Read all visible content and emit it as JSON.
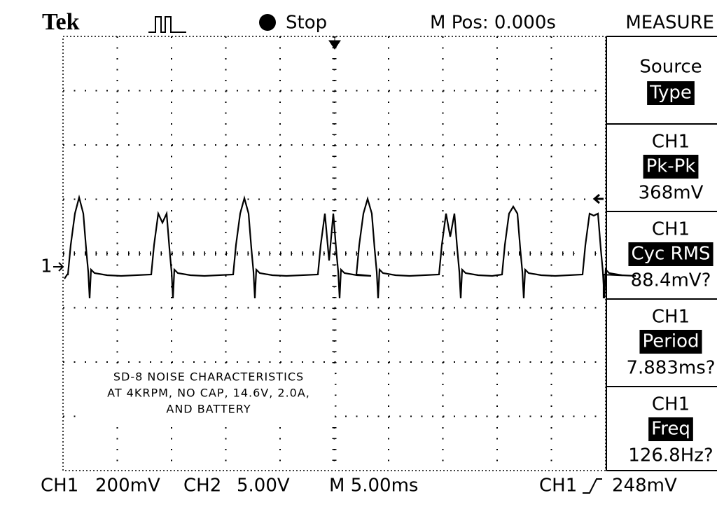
{
  "header": {
    "brand": "Tek",
    "state": "Stop",
    "position": "M Pos: 0.000s",
    "menu": "MEASURE"
  },
  "measure": [
    {
      "label": "Source",
      "selected": "Type"
    },
    {
      "label": "CH1",
      "selected": "Pk-Pk",
      "reading": "368mV"
    },
    {
      "label": "CH1",
      "selected": "Cyc RMS",
      "reading": "88.4mV?"
    },
    {
      "label": "CH1",
      "selected": "Period",
      "reading": "7.883ms?"
    },
    {
      "label": "CH1",
      "selected": "Freq",
      "reading": "126.8Hz?"
    }
  ],
  "marker": "1",
  "annotation": [
    "SD-8 NOISE CHARACTERISTICS",
    "AT 4KRPM, NO CAP, 14.6V, 2.0A,",
    "AND BATTERY"
  ],
  "footer": {
    "ch1": "CH1",
    "ch1_scale": "200mV",
    "ch2": "CH2",
    "ch2_scale": "5.00V",
    "timebase": "M 5.00ms",
    "trigger_source": "CH1",
    "trigger_level": "248mV"
  }
}
